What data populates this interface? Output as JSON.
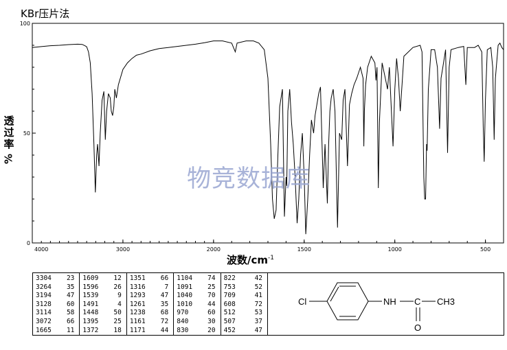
{
  "title": "KBr压片法",
  "watermark": "物竞数据库",
  "chart_data": {
    "type": "line",
    "xlabel_main": "波数/cm",
    "xlabel_sup": "-1",
    "ylabel_chars": [
      "透",
      "过",
      "率"
    ],
    "ylabel_unit": "%",
    "xlim": [
      4000,
      400
    ],
    "ylim": [
      0,
      100
    ],
    "x_ticks": [
      {
        "value": 4000,
        "label": "4000"
      },
      {
        "value": 3000,
        "label": "3000"
      },
      {
        "value": 2000,
        "label": "2000"
      },
      {
        "value": 1500,
        "label": "1500"
      },
      {
        "value": 1000,
        "label": "1000"
      },
      {
        "value": 500,
        "label": "500"
      }
    ],
    "y_ticks": [
      {
        "value": 100,
        "label": "100"
      },
      {
        "value": 50,
        "label": "50"
      },
      {
        "value": 0,
        "label": "0"
      }
    ],
    "spectrum": [
      [
        4000,
        89
      ],
      [
        3900,
        89.4
      ],
      [
        3800,
        89.8
      ],
      [
        3700,
        90
      ],
      [
        3600,
        90.3
      ],
      [
        3500,
        90.5
      ],
      [
        3450,
        90.4
      ],
      [
        3420,
        89.8
      ],
      [
        3400,
        89.3
      ],
      [
        3380,
        87
      ],
      [
        3360,
        82
      ],
      [
        3340,
        68
      ],
      [
        3320,
        45
      ],
      [
        3304,
        23
      ],
      [
        3290,
        40
      ],
      [
        3280,
        45
      ],
      [
        3264,
        35
      ],
      [
        3250,
        50
      ],
      [
        3230,
        65
      ],
      [
        3210,
        69
      ],
      [
        3194,
        47
      ],
      [
        3180,
        60
      ],
      [
        3160,
        68
      ],
      [
        3140,
        66
      ],
      [
        3128,
        60
      ],
      [
        3114,
        58
      ],
      [
        3100,
        62
      ],
      [
        3090,
        70
      ],
      [
        3072,
        66
      ],
      [
        3050,
        72
      ],
      [
        3000,
        79
      ],
      [
        2950,
        82
      ],
      [
        2900,
        84
      ],
      [
        2850,
        85.5
      ],
      [
        2800,
        86
      ],
      [
        2700,
        87.5
      ],
      [
        2600,
        88.5
      ],
      [
        2500,
        89
      ],
      [
        2400,
        89.5
      ],
      [
        2300,
        90
      ],
      [
        2200,
        90.5
      ],
      [
        2100,
        91.2
      ],
      [
        2000,
        92
      ],
      [
        1950,
        92
      ],
      [
        1900,
        91
      ],
      [
        1880,
        87
      ],
      [
        1870,
        91
      ],
      [
        1820,
        92
      ],
      [
        1780,
        92
      ],
      [
        1750,
        91
      ],
      [
        1720,
        88
      ],
      [
        1700,
        75
      ],
      [
        1685,
        45
      ],
      [
        1675,
        20
      ],
      [
        1665,
        11
      ],
      [
        1655,
        15
      ],
      [
        1645,
        40
      ],
      [
        1635,
        62
      ],
      [
        1620,
        70
      ],
      [
        1609,
        12
      ],
      [
        1600,
        30
      ],
      [
        1596,
        26
      ],
      [
        1590,
        60
      ],
      [
        1580,
        70
      ],
      [
        1570,
        55
      ],
      [
        1560,
        45
      ],
      [
        1550,
        30
      ],
      [
        1539,
        9
      ],
      [
        1530,
        20
      ],
      [
        1520,
        40
      ],
      [
        1510,
        50
      ],
      [
        1500,
        30
      ],
      [
        1491,
        4
      ],
      [
        1480,
        20
      ],
      [
        1470,
        40
      ],
      [
        1460,
        56
      ],
      [
        1448,
        50
      ],
      [
        1440,
        58
      ],
      [
        1420,
        68
      ],
      [
        1410,
        71
      ],
      [
        1395,
        25
      ],
      [
        1385,
        45
      ],
      [
        1372,
        18
      ],
      [
        1365,
        45
      ],
      [
        1358,
        60
      ],
      [
        1351,
        66
      ],
      [
        1340,
        70
      ],
      [
        1330,
        60
      ],
      [
        1316,
        7
      ],
      [
        1305,
        50
      ],
      [
        1293,
        47
      ],
      [
        1285,
        65
      ],
      [
        1275,
        70
      ],
      [
        1261,
        35
      ],
      [
        1250,
        63
      ],
      [
        1238,
        68
      ],
      [
        1225,
        72
      ],
      [
        1210,
        75
      ],
      [
        1190,
        80
      ],
      [
        1175,
        75
      ],
      [
        1171,
        44
      ],
      [
        1168,
        60
      ],
      [
        1161,
        72
      ],
      [
        1150,
        80
      ],
      [
        1130,
        85
      ],
      [
        1110,
        82
      ],
      [
        1104,
        74
      ],
      [
        1098,
        80
      ],
      [
        1091,
        25
      ],
      [
        1085,
        55
      ],
      [
        1070,
        82
      ],
      [
        1055,
        76
      ],
      [
        1040,
        70
      ],
      [
        1030,
        80
      ],
      [
        1010,
        44
      ],
      [
        1000,
        70
      ],
      [
        990,
        84
      ],
      [
        980,
        75
      ],
      [
        970,
        60
      ],
      [
        960,
        72
      ],
      [
        950,
        85
      ],
      [
        900,
        89
      ],
      [
        860,
        90
      ],
      [
        850,
        87
      ],
      [
        840,
        30
      ],
      [
        835,
        20
      ],
      [
        830,
        20
      ],
      [
        825,
        45
      ],
      [
        822,
        42
      ],
      [
        815,
        70
      ],
      [
        800,
        88
      ],
      [
        780,
        88
      ],
      [
        765,
        80
      ],
      [
        753,
        52
      ],
      [
        745,
        75
      ],
      [
        735,
        80
      ],
      [
        720,
        88
      ],
      [
        709,
        41
      ],
      [
        700,
        80
      ],
      [
        690,
        88
      ],
      [
        650,
        89
      ],
      [
        620,
        89.5
      ],
      [
        608,
        72
      ],
      [
        600,
        89
      ],
      [
        560,
        89
      ],
      [
        540,
        90
      ],
      [
        520,
        87
      ],
      [
        512,
        53
      ],
      [
        507,
        37
      ],
      [
        500,
        65
      ],
      [
        490,
        88
      ],
      [
        470,
        89
      ],
      [
        460,
        80
      ],
      [
        452,
        47
      ],
      [
        445,
        75
      ],
      [
        430,
        90
      ],
      [
        420,
        91
      ],
      [
        410,
        89
      ],
      [
        400,
        88
      ]
    ],
    "peak_table": [
      [
        [
          "3304",
          "23"
        ],
        [
          "3264",
          "35"
        ],
        [
          "3194",
          "47"
        ],
        [
          "3128",
          "60"
        ],
        [
          "3114",
          "58"
        ],
        [
          "3072",
          "66"
        ],
        [
          "1665",
          "11"
        ]
      ],
      [
        [
          "1609",
          "12"
        ],
        [
          "1596",
          "26"
        ],
        [
          "1539",
          "9"
        ],
        [
          "1491",
          "4"
        ],
        [
          "1448",
          "50"
        ],
        [
          "1395",
          "25"
        ],
        [
          "1372",
          "18"
        ]
      ],
      [
        [
          "1351",
          "66"
        ],
        [
          "1316",
          "7"
        ],
        [
          "1293",
          "47"
        ],
        [
          "1261",
          "35"
        ],
        [
          "1238",
          "68"
        ],
        [
          "1161",
          "72"
        ],
        [
          "1171",
          "44"
        ]
      ],
      [
        [
          "1104",
          "74"
        ],
        [
          "1091",
          "25"
        ],
        [
          "1040",
          "70"
        ],
        [
          "1010",
          "44"
        ],
        [
          "970",
          "60"
        ],
        [
          "840",
          "30"
        ],
        [
          "830",
          "20"
        ]
      ],
      [
        [
          "822",
          "42"
        ],
        [
          "753",
          "52"
        ],
        [
          "709",
          "41"
        ],
        [
          "608",
          "72"
        ],
        [
          "512",
          "53"
        ],
        [
          "507",
          "37"
        ],
        [
          "452",
          "47"
        ]
      ]
    ]
  },
  "structure": {
    "cl": "Cl",
    "nh": "NH",
    "c": "C",
    "ch3": "CH3",
    "o": "O"
  }
}
